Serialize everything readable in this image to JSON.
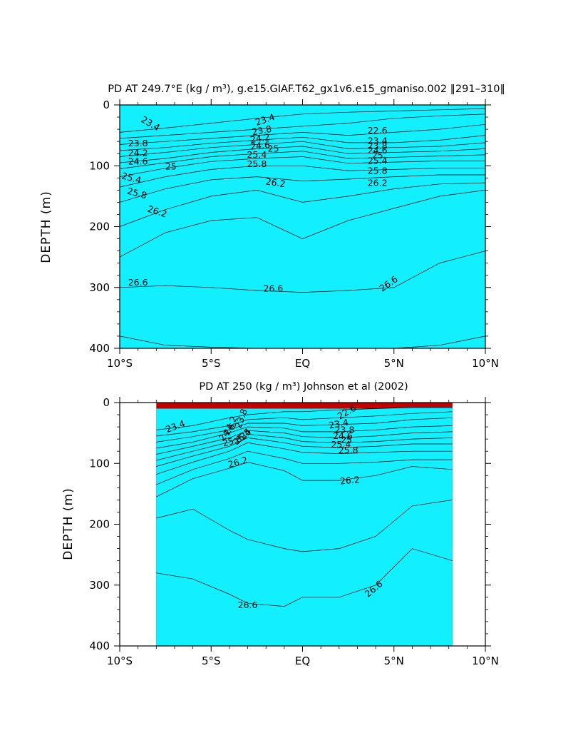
{
  "chart_data": [
    {
      "type": "heatmap",
      "subtype": "filled-contour depth section",
      "title": "PD AT 249.7°E (kg / m³), g.e15.GIAF.T62_gx1v6.e15_gmaniso.002 ‖291–310‖",
      "ylabel": "DEPTH (m)",
      "xlabel": "",
      "x_ticks": [
        "10°S",
        "5°S",
        "EQ",
        "5°N",
        "10°N"
      ],
      "x_tick_values": [
        -10,
        -5,
        0,
        5,
        10
      ],
      "y_ticks": [
        "0",
        "100",
        "200",
        "300",
        "400"
      ],
      "y_tick_values": [
        0,
        100,
        200,
        300,
        400
      ],
      "xlim": [
        -10,
        10
      ],
      "ylim": [
        400,
        0
      ],
      "data_extent_x": [
        -10,
        10
      ],
      "contour_labels": [
        {
          "text": "23.4",
          "x": -8.4,
          "y": 35,
          "angle": 30
        },
        {
          "text": "23.4",
          "x": -2.0,
          "y": 29,
          "angle": -18
        },
        {
          "text": "23.8",
          "x": -2.2,
          "y": 47,
          "angle": -10
        },
        {
          "text": "24.2",
          "x": -2.3,
          "y": 60,
          "angle": -8
        },
        {
          "text": "24.6",
          "x": -2.3,
          "y": 72,
          "angle": -5
        },
        {
          "text": "25",
          "x": -1.6,
          "y": 77,
          "angle": 0
        },
        {
          "text": "25.4",
          "x": -2.5,
          "y": 87,
          "angle": 0
        },
        {
          "text": "25.8",
          "x": -2.5,
          "y": 102,
          "angle": 0
        },
        {
          "text": "26.2",
          "x": -1.5,
          "y": 133,
          "angle": 8
        },
        {
          "text": "23.8",
          "x": -9.0,
          "y": 68,
          "angle": 0
        },
        {
          "text": "24.2",
          "x": -9.0,
          "y": 84,
          "angle": 0
        },
        {
          "text": "24.6",
          "x": -9.0,
          "y": 98,
          "angle": 0
        },
        {
          "text": "25",
          "x": -7.2,
          "y": 106,
          "angle": 0
        },
        {
          "text": "25.4",
          "x": -9.4,
          "y": 125,
          "angle": 15
        },
        {
          "text": "25.8",
          "x": -9.1,
          "y": 150,
          "angle": 15
        },
        {
          "text": "26.2",
          "x": -8.0,
          "y": 180,
          "angle": 18
        },
        {
          "text": "22.6",
          "x": 4.1,
          "y": 47,
          "angle": 0
        },
        {
          "text": "23.4",
          "x": 4.1,
          "y": 64,
          "angle": 0
        },
        {
          "text": "23.8",
          "x": 4.1,
          "y": 72,
          "angle": 0
        },
        {
          "text": "24.6",
          "x": 4.1,
          "y": 80,
          "angle": 0
        },
        {
          "text": "25",
          "x": 4.1,
          "y": 88,
          "angle": 0
        },
        {
          "text": "25.4",
          "x": 4.1,
          "y": 97,
          "angle": 0
        },
        {
          "text": "25.8",
          "x": 4.1,
          "y": 113,
          "angle": 0
        },
        {
          "text": "26.2",
          "x": 4.1,
          "y": 133,
          "angle": 0
        },
        {
          "text": "26.6",
          "x": -9.0,
          "y": 297,
          "angle": 0
        },
        {
          "text": "26.6",
          "x": -1.6,
          "y": 307,
          "angle": 0
        },
        {
          "text": "26.6",
          "x": 4.8,
          "y": 298,
          "angle": -35
        }
      ]
    },
    {
      "type": "heatmap",
      "subtype": "filled-contour depth section",
      "title": "PD AT 250 (kg / m³) Johnson et al (2002)",
      "ylabel": "DEPTH (m)",
      "xlabel": "",
      "x_ticks": [
        "10°S",
        "5°S",
        "EQ",
        "5°N",
        "10°N"
      ],
      "x_tick_values": [
        -10,
        -5,
        0,
        5,
        10
      ],
      "y_ticks": [
        "0",
        "100",
        "200",
        "300",
        "400"
      ],
      "y_tick_values": [
        0,
        100,
        200,
        300,
        400
      ],
      "xlim": [
        -10,
        10
      ],
      "ylim": [
        400,
        0
      ],
      "data_extent_x": [
        -8,
        8.2
      ],
      "contour_labels": [
        {
          "text": "23.4",
          "x": -6.9,
          "y": 44,
          "angle": -20
        },
        {
          "text": "23.8",
          "x": -3.2,
          "y": 28,
          "angle": -70
        },
        {
          "text": "24.2",
          "x": -3.8,
          "y": 40,
          "angle": -65
        },
        {
          "text": "24.6",
          "x": -4.0,
          "y": 52,
          "angle": -50
        },
        {
          "text": "25",
          "x": -3.0,
          "y": 55,
          "angle": -45
        },
        {
          "text": "25.4",
          "x": -3.2,
          "y": 60,
          "angle": -40
        },
        {
          "text": "25.8",
          "x": -3.8,
          "y": 68,
          "angle": -15
        },
        {
          "text": "26.2",
          "x": -3.5,
          "y": 103,
          "angle": -15
        },
        {
          "text": "22.6",
          "x": 2.5,
          "y": 20,
          "angle": -30
        },
        {
          "text": "23.4",
          "x": 2.0,
          "y": 40,
          "angle": -10
        },
        {
          "text": "23.8",
          "x": 2.3,
          "y": 50,
          "angle": 0
        },
        {
          "text": "24.6",
          "x": 2.2,
          "y": 60,
          "angle": 0
        },
        {
          "text": "25",
          "x": 2.4,
          "y": 66,
          "angle": 0
        },
        {
          "text": "25.4",
          "x": 2.1,
          "y": 74,
          "angle": 0
        },
        {
          "text": "25.8",
          "x": 2.5,
          "y": 83,
          "angle": 0
        },
        {
          "text": "26.2",
          "x": 2.6,
          "y": 133,
          "angle": -5
        },
        {
          "text": "26.6",
          "x": -3.0,
          "y": 338,
          "angle": 0
        },
        {
          "text": "26.6",
          "x": 4.0,
          "y": 310,
          "angle": -40
        }
      ]
    }
  ]
}
